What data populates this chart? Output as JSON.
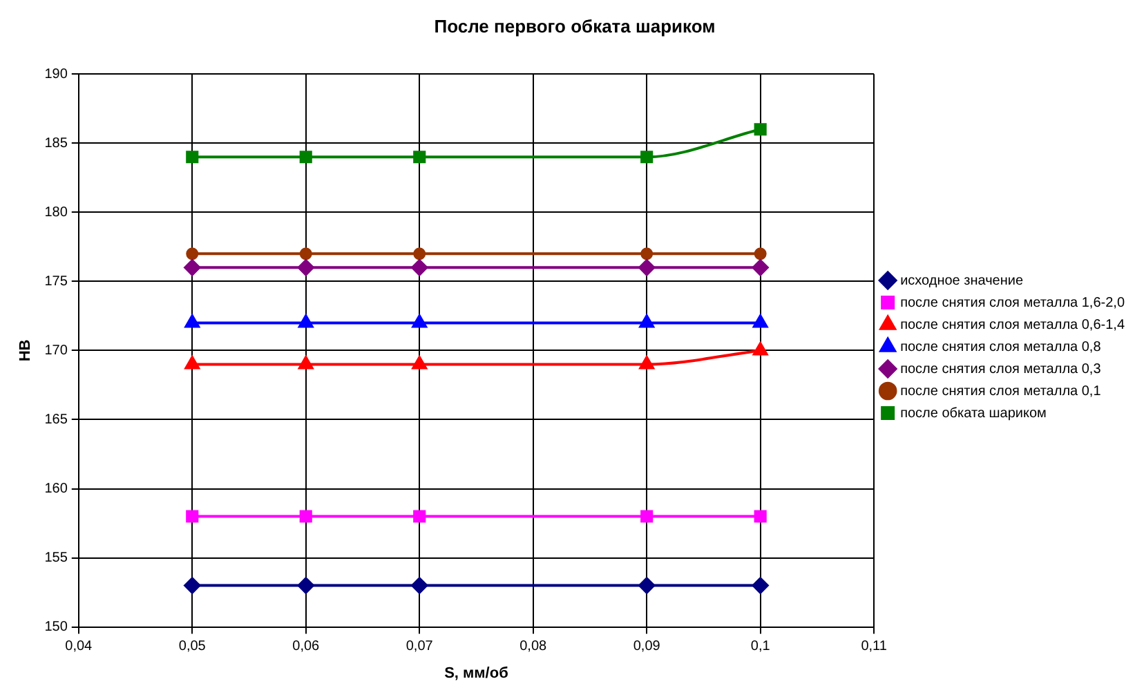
{
  "chart_data": {
    "type": "line",
    "title": "После первого обката шариком",
    "xlabel": "S, мм/об",
    "ylabel": "НВ",
    "x": [
      0.05,
      0.06,
      0.07,
      0.09,
      0.1
    ],
    "xlim": [
      0.04,
      0.11
    ],
    "xticks": [
      {
        "value": 0.04,
        "label": "0,04"
      },
      {
        "value": 0.05,
        "label": "0,05"
      },
      {
        "value": 0.06,
        "label": "0,06"
      },
      {
        "value": 0.07,
        "label": "0,07"
      },
      {
        "value": 0.08,
        "label": "0,08"
      },
      {
        "value": 0.09,
        "label": "0,09"
      },
      {
        "value": 0.1,
        "label": "0,1"
      },
      {
        "value": 0.11,
        "label": "0,11"
      }
    ],
    "ylim": [
      150,
      190
    ],
    "yticks": [
      150,
      155,
      160,
      165,
      170,
      175,
      180,
      185,
      190
    ],
    "grid": true,
    "legend": "right",
    "line_style": "solid",
    "series": [
      {
        "name": "исходное значение",
        "color": "#000080",
        "marker": "diamond",
        "values": [
          153,
          153,
          153,
          153,
          153
        ]
      },
      {
        "name": "после снятия слоя металла 1,6-2,0",
        "color": "#ff00ff",
        "marker": "square",
        "values": [
          158,
          158,
          158,
          158,
          158
        ]
      },
      {
        "name": "после снятия слоя металла 0,6-1,4",
        "color": "#ff0000",
        "marker": "triangle",
        "values": [
          169,
          169,
          169,
          169,
          170
        ]
      },
      {
        "name": "после снятия слоя металла 0,8",
        "color": "#0000ff",
        "marker": "triangle",
        "values": [
          172,
          172,
          172,
          172,
          172
        ]
      },
      {
        "name": "после снятия слоя металла 0,3",
        "color": "#800080",
        "marker": "diamond",
        "values": [
          176,
          176,
          176,
          176,
          176
        ]
      },
      {
        "name": "после снятия слоя металла 0,1",
        "color": "#993300",
        "marker": "circle",
        "values": [
          177,
          177,
          177,
          177,
          177
        ]
      },
      {
        "name": "после обката шариком",
        "color": "#008000",
        "marker": "square",
        "values": [
          184,
          184,
          184,
          184,
          186
        ]
      }
    ]
  }
}
